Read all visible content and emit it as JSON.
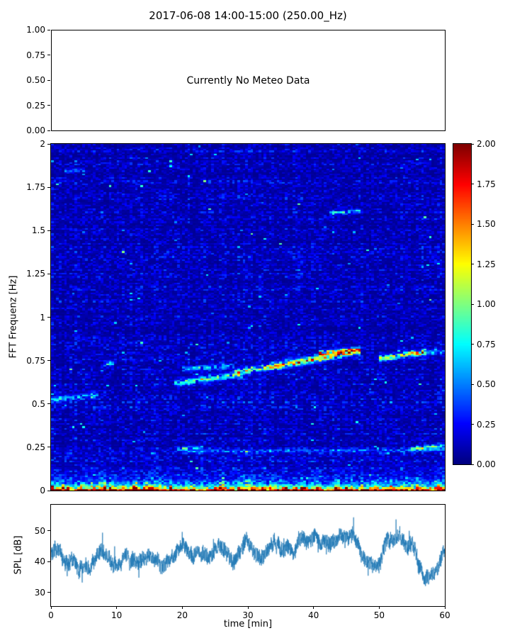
{
  "figure": {
    "title": "2017-06-08 14:00-15:00 (250.00_Hz)",
    "background_color": "#ffffff"
  },
  "meteo_panel": {
    "message": "Currently No Meteo Data",
    "ylim": [
      0,
      1
    ],
    "yticks": [
      {
        "value": 0.0,
        "label": "0.00"
      },
      {
        "value": 0.25,
        "label": "0.25"
      },
      {
        "value": 0.5,
        "label": "0.50"
      },
      {
        "value": 0.75,
        "label": "0.75"
      },
      {
        "value": 1.0,
        "label": "1.00"
      }
    ]
  },
  "chart_data": [
    {
      "name": "fft-spectrogram",
      "type": "heatmap",
      "ylabel": "FFT Frequenz [Hz]",
      "xlim": [
        0,
        60
      ],
      "ylim": [
        0,
        2
      ],
      "clim": [
        0,
        2
      ],
      "colormap": "jet",
      "grid": false,
      "yticks": [
        {
          "value": 0,
          "label": "0"
        },
        {
          "value": 0.25,
          "label": "0.25"
        },
        {
          "value": 0.5,
          "label": "0.5"
        },
        {
          "value": 0.75,
          "label": "0.75"
        },
        {
          "value": 1,
          "label": "1"
        },
        {
          "value": 1.25,
          "label": "1.25"
        },
        {
          "value": 1.5,
          "label": "1.5"
        },
        {
          "value": 1.75,
          "label": "1.75"
        },
        {
          "value": 2,
          "label": "2"
        }
      ],
      "colorbar_ticks": [
        {
          "value": 0.0,
          "label": "0.00"
        },
        {
          "value": 0.25,
          "label": "0.25"
        },
        {
          "value": 0.5,
          "label": "0.50"
        },
        {
          "value": 0.75,
          "label": "0.75"
        },
        {
          "value": 1.0,
          "label": "1.00"
        },
        {
          "value": 1.25,
          "label": "1.25"
        },
        {
          "value": 1.5,
          "label": "1.50"
        },
        {
          "value": 1.75,
          "label": "1.75"
        },
        {
          "value": 2.0,
          "label": "2.00"
        }
      ],
      "noise_floor": {
        "base_level": 0.12,
        "range": [
          0.05,
          0.35
        ]
      },
      "low_freq_band": {
        "peak_value": 2.0,
        "decay_hz": 0.02,
        "speckle_decay_hz": 0.055
      },
      "features": [
        {
          "t0": 0,
          "t1": 7,
          "f0": 0.52,
          "f1": 0.55,
          "sigma": 0.012,
          "amp": 0.5
        },
        {
          "t0": 8,
          "t1": 9.5,
          "f0": 0.73,
          "f1": 0.73,
          "sigma": 0.01,
          "amp": 0.6
        },
        {
          "t0": 19,
          "t1": 29,
          "f0": 0.62,
          "f1": 0.67,
          "sigma": 0.012,
          "amp": 0.8
        },
        {
          "t0": 20,
          "t1": 28,
          "f0": 0.7,
          "f1": 0.72,
          "sigma": 0.01,
          "amp": 0.55
        },
        {
          "t0": 28,
          "t1": 47,
          "f0": 0.68,
          "f1": 0.8,
          "sigma": 0.013,
          "amp": 0.95
        },
        {
          "t0": 33,
          "t1": 40,
          "f0": 0.71,
          "f1": 0.75,
          "sigma": 0.01,
          "amp": 0.5
        },
        {
          "t0": 41,
          "t1": 47,
          "f0": 0.79,
          "f1": 0.81,
          "sigma": 0.01,
          "amp": 1.5
        },
        {
          "t0": 50,
          "t1": 57,
          "f0": 0.76,
          "f1": 0.8,
          "sigma": 0.012,
          "amp": 0.9
        },
        {
          "t0": 55,
          "t1": 60,
          "f0": 0.79,
          "f1": 0.8,
          "sigma": 0.009,
          "amp": 0.5
        },
        {
          "t0": 20,
          "t1": 60,
          "f0": 0.225,
          "f1": 0.235,
          "sigma": 0.007,
          "amp": 0.35
        },
        {
          "t0": 19,
          "t1": 23,
          "f0": 0.24,
          "f1": 0.25,
          "sigma": 0.008,
          "amp": 0.5
        },
        {
          "t0": 55,
          "t1": 60,
          "f0": 0.24,
          "f1": 0.26,
          "sigma": 0.009,
          "amp": 0.7
        },
        {
          "t0": 42.5,
          "t1": 47,
          "f0": 1.6,
          "f1": 1.61,
          "sigma": 0.008,
          "amp": 0.65
        },
        {
          "t0": 2,
          "t1": 5,
          "f0": 1.84,
          "f1": 1.85,
          "sigma": 0.008,
          "amp": 0.35
        }
      ]
    },
    {
      "name": "spl-timeseries",
      "type": "line",
      "ylabel": "SPL [dB]",
      "xlabel": "time [min]",
      "xlim": [
        0,
        60
      ],
      "ylim": [
        25.5,
        58.5
      ],
      "line_color": "#1f77b4",
      "grid": false,
      "yticks": [
        {
          "value": 30,
          "label": "30"
        },
        {
          "value": 40,
          "label": "40"
        },
        {
          "value": 50,
          "label": "50"
        }
      ],
      "xticks": [
        {
          "value": 0,
          "label": "0"
        },
        {
          "value": 10,
          "label": "10"
        },
        {
          "value": 20,
          "label": "20"
        },
        {
          "value": 30,
          "label": "30"
        },
        {
          "value": 40,
          "label": "40"
        },
        {
          "value": 50,
          "label": "50"
        },
        {
          "value": 60,
          "label": "60"
        }
      ],
      "noise_db": 2.4,
      "mean_keypoints": [
        [
          0,
          43
        ],
        [
          1,
          45
        ],
        [
          2,
          41
        ],
        [
          3,
          40
        ],
        [
          4,
          39
        ],
        [
          5,
          38
        ],
        [
          6,
          38
        ],
        [
          7,
          42
        ],
        [
          8,
          44
        ],
        [
          9,
          41
        ],
        [
          10,
          40
        ],
        [
          11,
          42
        ],
        [
          12,
          40
        ],
        [
          13,
          39
        ],
        [
          14,
          41
        ],
        [
          15,
          42
        ],
        [
          16,
          40
        ],
        [
          17,
          39
        ],
        [
          18,
          41
        ],
        [
          19,
          44
        ],
        [
          20,
          45
        ],
        [
          21,
          43
        ],
        [
          22,
          43
        ],
        [
          23,
          44
        ],
        [
          24,
          42
        ],
        [
          25,
          44
        ],
        [
          26,
          45
        ],
        [
          27,
          42
        ],
        [
          28,
          40
        ],
        [
          29,
          46
        ],
        [
          30,
          48
        ],
        [
          31,
          42
        ],
        [
          32,
          41
        ],
        [
          33,
          45
        ],
        [
          34,
          47
        ],
        [
          35,
          45
        ],
        [
          36,
          46
        ],
        [
          37,
          44
        ],
        [
          38,
          46
        ],
        [
          39,
          44
        ],
        [
          40,
          48
        ],
        [
          41,
          45
        ],
        [
          42,
          47
        ],
        [
          43,
          46
        ],
        [
          44,
          48
        ],
        [
          45,
          50
        ],
        [
          46,
          48
        ],
        [
          47,
          44
        ],
        [
          48,
          40
        ],
        [
          49,
          39
        ],
        [
          50,
          40
        ],
        [
          51,
          48
        ],
        [
          52,
          47
        ],
        [
          53,
          49
        ],
        [
          54,
          44
        ],
        [
          55,
          48
        ],
        [
          56,
          40
        ],
        [
          57,
          33
        ],
        [
          58,
          36
        ],
        [
          59,
          37
        ],
        [
          60,
          44
        ]
      ]
    }
  ]
}
